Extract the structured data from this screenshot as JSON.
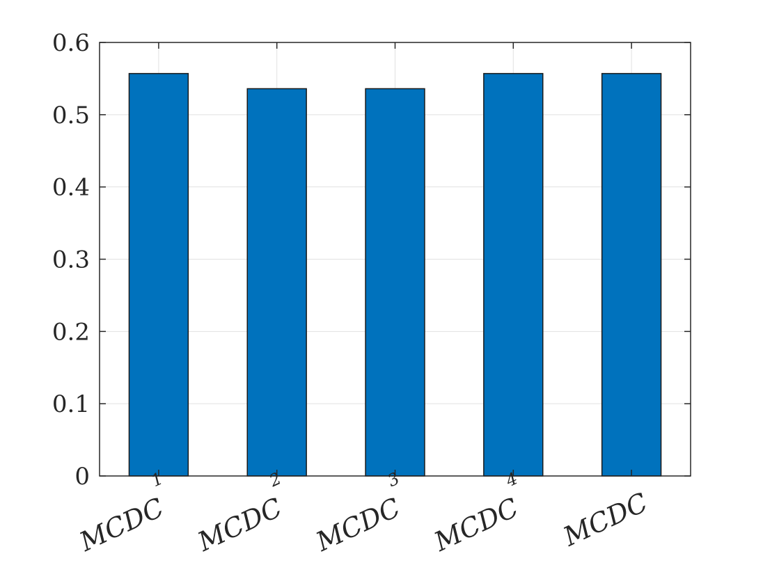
{
  "chart_data": {
    "type": "bar",
    "categories": [
      {
        "base": "MCDC",
        "sup": "1"
      },
      {
        "base": "MCDC",
        "sup": "2"
      },
      {
        "base": "MCDC",
        "sup": "3"
      },
      {
        "base": "MCDC",
        "sup": "4"
      },
      {
        "base": "MCDC",
        "sup": ""
      }
    ],
    "values": [
      0.557,
      0.536,
      0.536,
      0.557,
      0.557
    ],
    "title": "",
    "xlabel": "",
    "ylabel": "",
    "ylim": [
      0,
      0.6
    ],
    "yticks": [
      "0",
      "0.1",
      "0.2",
      "0.3",
      "0.4",
      "0.5",
      "0.6"
    ],
    "grid": true,
    "colors": {
      "bar": "#0072BD",
      "bar_edge": "#1a1a1a",
      "axis": "#262626",
      "grid": "#e1e1e1"
    }
  }
}
